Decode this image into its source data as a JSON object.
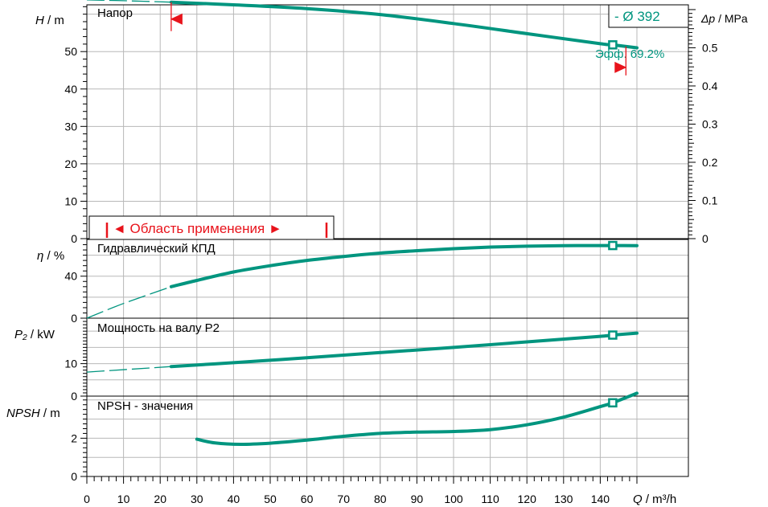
{
  "colors": {
    "curve": "#00957f",
    "marker": "#e8131b",
    "grid": "#b8b8b8",
    "axis": "#000000"
  },
  "x_axis": {
    "label_var": "Q",
    "label_unit": " / m³/h",
    "range": [
      0,
      150
    ],
    "ticks": [
      0,
      10,
      20,
      30,
      40,
      50,
      60,
      70,
      80,
      90,
      100,
      110,
      120,
      130,
      140
    ]
  },
  "legend": {
    "diameter": "- Ø 392"
  },
  "annotations": {
    "range_text": "◄ Область применения ►",
    "efficiency_text": "Эфф.  69.2%"
  },
  "panels": {
    "head": {
      "title": "Напор",
      "ylabel_var": "H",
      "ylabel_unit": " / m",
      "ylim": [
        0,
        62.5
      ],
      "ticks": [
        0,
        10,
        20,
        30,
        40,
        50
      ],
      "right_axis": {
        "label_var": "Δp",
        "label_unit": " / MPa",
        "ylim": [
          0,
          0.6125
        ],
        "ticks": [
          "0",
          "0.1",
          "0.2",
          "0.3",
          "0.4",
          "0.5"
        ],
        "tick_values": [
          0,
          0.1,
          0.2,
          0.3,
          0.4,
          0.5
        ]
      }
    },
    "eff": {
      "title": "Гидравлический КПД",
      "ylabel_var": "η",
      "ylabel_unit": " / %",
      "ylim": [
        0,
        75
      ],
      "ticks": [
        0,
        40
      ]
    },
    "power": {
      "title": "Мощность на валу P2",
      "ylabel_var": "P₂",
      "ylabel_unit": " / kW",
      "ylim": [
        0,
        24
      ],
      "ticks": [
        0,
        10
      ]
    },
    "npsh": {
      "title": "NPSH - значения",
      "ylabel_var": "NPSH",
      "ylabel_unit": " / m",
      "ylim": [
        0,
        4.2
      ],
      "ticks": [
        0,
        2
      ]
    }
  },
  "chart_data": [
    {
      "type": "line",
      "title": "Напор",
      "xlabel": "Q / m³/h",
      "ylabel": "H / m",
      "xlim": [
        0,
        150
      ],
      "ylim": [
        0,
        62.5
      ],
      "series": [
        {
          "name": "Ø 392",
          "x": [
            0,
            10,
            23,
            40,
            60,
            80,
            100,
            120,
            140,
            143.4,
            150
          ],
          "y": [
            63.8,
            63.6,
            63.2,
            62.5,
            61.5,
            59.9,
            57.5,
            54.8,
            52.1,
            51.8,
            51.0
          ],
          "dashed_until_x": 23
        }
      ],
      "duty_point": {
        "x": 143.4,
        "y": 51.8
      },
      "operating_range": [
        23,
        147
      ]
    },
    {
      "type": "line",
      "title": "Гидравлический КПД",
      "xlabel": "Q / m³/h",
      "ylabel": "η / %",
      "xlim": [
        0,
        150
      ],
      "ylim": [
        0,
        75
      ],
      "series": [
        {
          "name": "Ø 392",
          "x": [
            0,
            10,
            23,
            30,
            40,
            50,
            60,
            70,
            80,
            90,
            100,
            110,
            120,
            130,
            140,
            143.4,
            150
          ],
          "y": [
            0,
            14,
            30,
            36,
            44,
            50,
            55,
            58.8,
            62,
            64.3,
            66.2,
            67.7,
            68.6,
            69.1,
            69.2,
            69.2,
            69.1
          ],
          "dashed_until_x": 23
        }
      ],
      "duty_point": {
        "x": 143.4,
        "y": 69.2
      }
    },
    {
      "type": "line",
      "title": "Мощность на валу P2",
      "xlabel": "Q / m³/h",
      "ylabel": "P₂ / kW",
      "xlim": [
        0,
        150
      ],
      "ylim": [
        0,
        24
      ],
      "series": [
        {
          "name": "Ø 392",
          "x": [
            0,
            23,
            40,
            60,
            80,
            100,
            120,
            140,
            143.4,
            150
          ],
          "y": [
            7.4,
            9.1,
            10.3,
            11.8,
            13.4,
            15.0,
            16.7,
            18.4,
            18.8,
            19.4
          ],
          "dashed_until_x": 23
        }
      ],
      "duty_point": {
        "x": 143.4,
        "y": 18.8
      }
    },
    {
      "type": "line",
      "title": "NPSH - значения",
      "xlabel": "Q / m³/h",
      "ylabel": "NPSH / m",
      "xlim": [
        0,
        150
      ],
      "ylim": [
        0,
        4.2
      ],
      "series": [
        {
          "name": "Ø 392",
          "x": [
            30,
            35,
            42,
            50,
            60,
            70,
            80,
            90,
            100,
            110,
            120,
            130,
            140,
            143.4,
            150
          ],
          "y": [
            1.95,
            1.75,
            1.68,
            1.74,
            1.9,
            2.1,
            2.25,
            2.32,
            2.35,
            2.45,
            2.7,
            3.1,
            3.65,
            3.85,
            4.35
          ]
        }
      ],
      "duty_point": {
        "x": 143.4,
        "y": 3.85
      }
    }
  ]
}
